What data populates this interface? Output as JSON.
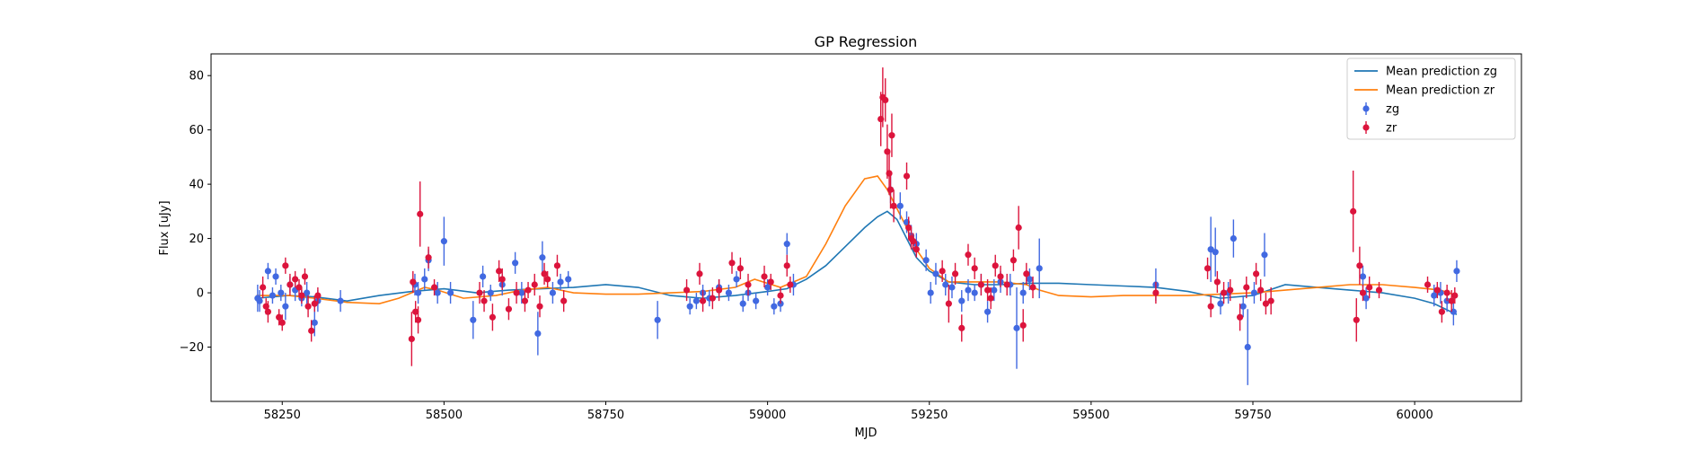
{
  "chart_data": {
    "type": "scatter",
    "title": "GP Regression",
    "xlabel": "MJD",
    "ylabel": "Flux [uJy]",
    "xlim": [
      58140,
      60165
    ],
    "ylim": [
      -40,
      88
    ],
    "xticks": [
      58250,
      58500,
      58750,
      59000,
      59250,
      59500,
      59750,
      60000
    ],
    "yticks": [
      -20,
      0,
      20,
      40,
      60,
      80
    ],
    "grid": false,
    "legend_position": "top-right",
    "legend": [
      {
        "label": "Mean prediction zg",
        "kind": "line",
        "color": "#1f77b4"
      },
      {
        "label": "Mean prediction zr",
        "kind": "line",
        "color": "#ff7f0e"
      },
      {
        "label": "zg",
        "kind": "errorbar",
        "color": "#4169e1"
      },
      {
        "label": "zr",
        "kind": "errorbar",
        "color": "#dc143c"
      }
    ],
    "lines": [
      {
        "name": "Mean prediction zg",
        "color": "#1f77b4",
        "x": [
          58210,
          58260,
          58300,
          58350,
          58400,
          58450,
          58500,
          58550,
          58600,
          58650,
          58700,
          58750,
          58800,
          58850,
          58900,
          58950,
          59000,
          59030,
          59060,
          59090,
          59120,
          59150,
          59170,
          59185,
          59200,
          59215,
          59230,
          59250,
          59280,
          59320,
          59360,
          59400,
          59450,
          59500,
          59550,
          59600,
          59650,
          59700,
          59750,
          59800,
          59850,
          59900,
          59950,
          60000,
          60030,
          60065
        ],
        "y": [
          -2,
          -1,
          -1.5,
          -3,
          -1,
          0.5,
          1.5,
          0,
          1,
          1.5,
          2,
          3,
          2,
          -1,
          -2,
          -1,
          0.5,
          1.5,
          5,
          10,
          17,
          24,
          28,
          30,
          27,
          20,
          13,
          8,
          4,
          3,
          3,
          3.5,
          3.5,
          3,
          2.5,
          2,
          0.5,
          -2,
          -1,
          3,
          2,
          1,
          0,
          -2,
          -4,
          -8
        ]
      },
      {
        "name": "Mean prediction zr",
        "color": "#ff7f0e",
        "x": [
          58210,
          58260,
          58300,
          58350,
          58400,
          58430,
          58470,
          58490,
          58530,
          58580,
          58620,
          58660,
          58700,
          58750,
          58800,
          58850,
          58900,
          58950,
          58980,
          59020,
          59060,
          59090,
          59120,
          59150,
          59170,
          59185,
          59200,
          59215,
          59230,
          59250,
          59280,
          59320,
          59360,
          59400,
          59420,
          59450,
          59500,
          59550,
          59600,
          59650,
          59700,
          59750,
          59800,
          59850,
          59900,
          59950,
          60000,
          60040,
          60065
        ],
        "y": [
          -1,
          -1,
          -2,
          -3.5,
          -4,
          -2,
          2,
          1,
          -2,
          -1,
          1,
          2,
          0,
          -0.5,
          -0.5,
          0,
          0.5,
          2,
          5,
          2,
          6,
          18,
          32,
          42,
          43,
          38,
          31,
          24,
          16,
          9,
          4,
          4,
          4,
          3,
          1,
          -1,
          -1.5,
          -1,
          -1,
          -1,
          -0.5,
          0,
          1,
          2,
          3,
          3,
          2,
          1,
          -1
        ]
      }
    ],
    "series": [
      {
        "name": "zg",
        "color": "#4169e1",
        "points": [
          [
            58212,
            -2,
            5
          ],
          [
            58215,
            -3,
            4
          ],
          [
            58228,
            8,
            3
          ],
          [
            58235,
            -1,
            3
          ],
          [
            58240,
            6,
            3
          ],
          [
            58248,
            0,
            3
          ],
          [
            58255,
            -5,
            5
          ],
          [
            58262,
            3,
            3
          ],
          [
            58270,
            1,
            4
          ],
          [
            58280,
            -2,
            3
          ],
          [
            58288,
            0,
            4
          ],
          [
            58300,
            -11,
            5
          ],
          [
            58305,
            -3,
            4
          ],
          [
            58340,
            -3,
            4
          ],
          [
            58455,
            3,
            4
          ],
          [
            58460,
            0,
            4
          ],
          [
            58470,
            5,
            4
          ],
          [
            58476,
            12,
            4
          ],
          [
            58490,
            0,
            4
          ],
          [
            58500,
            19,
            9
          ],
          [
            58510,
            0,
            4
          ],
          [
            58545,
            -10,
            7
          ],
          [
            58560,
            6,
            4
          ],
          [
            58572,
            0,
            3
          ],
          [
            58590,
            3,
            4
          ],
          [
            58610,
            11,
            4
          ],
          [
            58620,
            0,
            4
          ],
          [
            58645,
            -15,
            8
          ],
          [
            58652,
            13,
            6
          ],
          [
            58668,
            0,
            4
          ],
          [
            58680,
            4,
            3
          ],
          [
            58692,
            5,
            3
          ],
          [
            58830,
            -10,
            7
          ],
          [
            58880,
            -5,
            3
          ],
          [
            58890,
            -3,
            3
          ],
          [
            58900,
            0,
            3
          ],
          [
            58910,
            -2,
            3
          ],
          [
            58925,
            2,
            3
          ],
          [
            58940,
            0,
            3
          ],
          [
            58952,
            5,
            3
          ],
          [
            58962,
            -4,
            3
          ],
          [
            58970,
            0,
            3
          ],
          [
            58982,
            -3,
            3
          ],
          [
            59000,
            2,
            3
          ],
          [
            59010,
            -5,
            3
          ],
          [
            59020,
            -4,
            3
          ],
          [
            59030,
            18,
            4
          ],
          [
            59040,
            3,
            4
          ],
          [
            59190,
            38,
            5
          ],
          [
            59205,
            32,
            5
          ],
          [
            59215,
            26,
            4
          ],
          [
            59222,
            21,
            4
          ],
          [
            59230,
            18,
            4
          ],
          [
            59245,
            12,
            4
          ],
          [
            59252,
            0,
            4
          ],
          [
            59260,
            7,
            4
          ],
          [
            59275,
            3,
            4
          ],
          [
            59285,
            2,
            4
          ],
          [
            59300,
            -3,
            4
          ],
          [
            59310,
            1,
            4
          ],
          [
            59320,
            0,
            3
          ],
          [
            59330,
            3,
            4
          ],
          [
            59340,
            -7,
            4
          ],
          [
            59350,
            1,
            4
          ],
          [
            59360,
            4,
            4
          ],
          [
            59375,
            3,
            4
          ],
          [
            59385,
            -13,
            15
          ],
          [
            59395,
            0,
            4
          ],
          [
            59405,
            5,
            4
          ],
          [
            59420,
            9,
            11
          ],
          [
            59600,
            3,
            6
          ],
          [
            59685,
            16,
            12
          ],
          [
            59692,
            15,
            9
          ],
          [
            59700,
            -4,
            4
          ],
          [
            59712,
            0,
            4
          ],
          [
            59720,
            20,
            7
          ],
          [
            59735,
            -5,
            4
          ],
          [
            59742,
            -20,
            14
          ],
          [
            59752,
            0,
            4
          ],
          [
            59768,
            14,
            8
          ],
          [
            59920,
            6,
            4
          ],
          [
            59925,
            -2,
            4
          ],
          [
            60030,
            -1,
            4
          ],
          [
            60040,
            0,
            4
          ],
          [
            60050,
            -3,
            4
          ],
          [
            60060,
            -7,
            5
          ],
          [
            60065,
            8,
            4
          ]
        ]
      },
      {
        "name": "zr",
        "color": "#dc143c",
        "points": [
          [
            58220,
            2,
            4
          ],
          [
            58225,
            -5,
            3
          ],
          [
            58228,
            -7,
            4
          ],
          [
            58245,
            -9,
            3
          ],
          [
            58250,
            -11,
            3
          ],
          [
            58255,
            10,
            3
          ],
          [
            58262,
            3,
            4
          ],
          [
            58270,
            5,
            3
          ],
          [
            58276,
            2,
            3
          ],
          [
            58280,
            -1,
            3
          ],
          [
            58285,
            6,
            3
          ],
          [
            58290,
            -5,
            4
          ],
          [
            58295,
            -14,
            4
          ],
          [
            58300,
            -4,
            3
          ],
          [
            58305,
            -1,
            3
          ],
          [
            58450,
            -17,
            10
          ],
          [
            58452,
            4,
            4
          ],
          [
            58456,
            -7,
            4
          ],
          [
            58460,
            -10,
            5
          ],
          [
            58463,
            29,
            12
          ],
          [
            58476,
            13,
            4
          ],
          [
            58485,
            2,
            3
          ],
          [
            58555,
            0,
            4
          ],
          [
            58562,
            -3,
            4
          ],
          [
            58575,
            -9,
            5
          ],
          [
            58585,
            8,
            4
          ],
          [
            58590,
            5,
            4
          ],
          [
            58600,
            -6,
            4
          ],
          [
            58612,
            0,
            4
          ],
          [
            58625,
            -3,
            4
          ],
          [
            58630,
            1,
            3
          ],
          [
            58640,
            3,
            4
          ],
          [
            58648,
            -5,
            4
          ],
          [
            58655,
            7,
            4
          ],
          [
            58660,
            5,
            3
          ],
          [
            58675,
            10,
            4
          ],
          [
            58685,
            -3,
            4
          ],
          [
            58875,
            1,
            4
          ],
          [
            58895,
            7,
            4
          ],
          [
            58900,
            -3,
            4
          ],
          [
            58915,
            -2,
            4
          ],
          [
            58925,
            1,
            4
          ],
          [
            58945,
            11,
            4
          ],
          [
            58958,
            9,
            4
          ],
          [
            58970,
            3,
            4
          ],
          [
            58995,
            6,
            4
          ],
          [
            59005,
            4,
            3
          ],
          [
            59020,
            -1,
            3
          ],
          [
            59030,
            10,
            4
          ],
          [
            59035,
            3,
            3
          ],
          [
            59175,
            64,
            10
          ],
          [
            59178,
            72,
            11
          ],
          [
            59182,
            71,
            8
          ],
          [
            59185,
            52,
            10
          ],
          [
            59188,
            44,
            8
          ],
          [
            59190,
            38,
            7
          ],
          [
            59192,
            58,
            8
          ],
          [
            59195,
            32,
            6
          ],
          [
            59215,
            43,
            5
          ],
          [
            59218,
            24,
            4
          ],
          [
            59222,
            20,
            4
          ],
          [
            59225,
            19,
            3
          ],
          [
            59230,
            16,
            3
          ],
          [
            59270,
            8,
            4
          ],
          [
            59280,
            -4,
            7
          ],
          [
            59290,
            7,
            4
          ],
          [
            59300,
            -13,
            5
          ],
          [
            59310,
            14,
            4
          ],
          [
            59320,
            9,
            4
          ],
          [
            59330,
            3,
            4
          ],
          [
            59340,
            1,
            4
          ],
          [
            59345,
            -2,
            4
          ],
          [
            59352,
            10,
            4
          ],
          [
            59360,
            6,
            4
          ],
          [
            59370,
            3,
            4
          ],
          [
            59380,
            12,
            4
          ],
          [
            59388,
            24,
            8
          ],
          [
            59395,
            -12,
            6
          ],
          [
            59400,
            7,
            4
          ],
          [
            59410,
            2,
            4
          ],
          [
            59600,
            0,
            4
          ],
          [
            59680,
            9,
            4
          ],
          [
            59685,
            -5,
            4
          ],
          [
            59695,
            4,
            4
          ],
          [
            59705,
            0,
            4
          ],
          [
            59715,
            1,
            4
          ],
          [
            59730,
            -9,
            5
          ],
          [
            59740,
            2,
            4
          ],
          [
            59755,
            7,
            4
          ],
          [
            59762,
            1,
            4
          ],
          [
            59770,
            -4,
            4
          ],
          [
            59778,
            -3,
            5
          ],
          [
            59905,
            30,
            15
          ],
          [
            59910,
            -10,
            8
          ],
          [
            59915,
            10,
            7
          ],
          [
            59920,
            0,
            3
          ],
          [
            59930,
            2,
            4
          ],
          [
            59945,
            1,
            3
          ],
          [
            60020,
            3,
            3
          ],
          [
            60035,
            1,
            3
          ],
          [
            60042,
            -7,
            4
          ],
          [
            60050,
            0,
            3
          ],
          [
            60057,
            -3,
            4
          ],
          [
            60062,
            -1,
            3
          ]
        ]
      }
    ]
  }
}
